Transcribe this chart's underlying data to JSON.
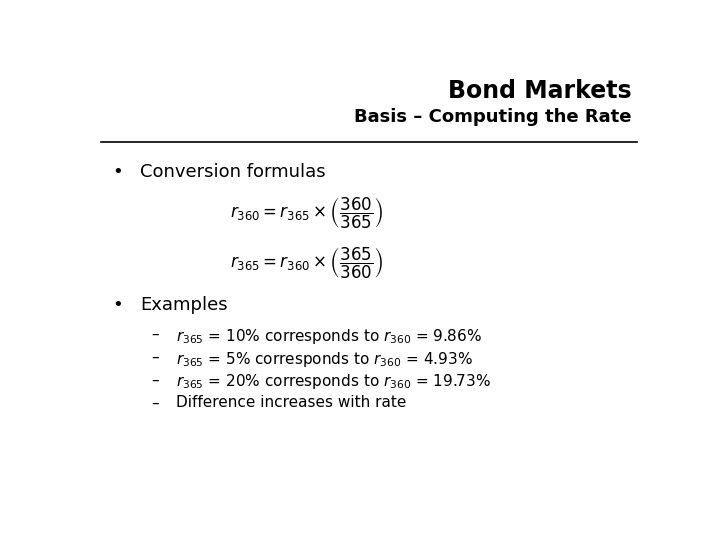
{
  "title": "Bond Markets",
  "subtitle": "Basis – Computing the Rate",
  "background_color": "#ffffff",
  "title_fontsize": 17,
  "subtitle_fontsize": 13,
  "text_color": "#000000",
  "bullet1": "Conversion formulas",
  "bullet1_fontsize": 13,
  "formula1": "$r_{360} = r_{365} \\times \\left(\\dfrac{360}{365}\\right)$",
  "formula2": "$r_{365} = r_{360} \\times \\left(\\dfrac{365}{360}\\right)$",
  "formula_fontsize": 12,
  "bullet2": "Examples",
  "bullet2_fontsize": 13,
  "examples": [
    "$r_{365}$ = 10% corresponds to $r_{360}$ = 9.86%",
    "$r_{365}$ = 5% corresponds to $r_{360}$ = 4.93%",
    "$r_{365}$ = 20% corresponds to $r_{360}$ = 19.73%",
    "Difference increases with rate"
  ],
  "example_fontsize": 11
}
